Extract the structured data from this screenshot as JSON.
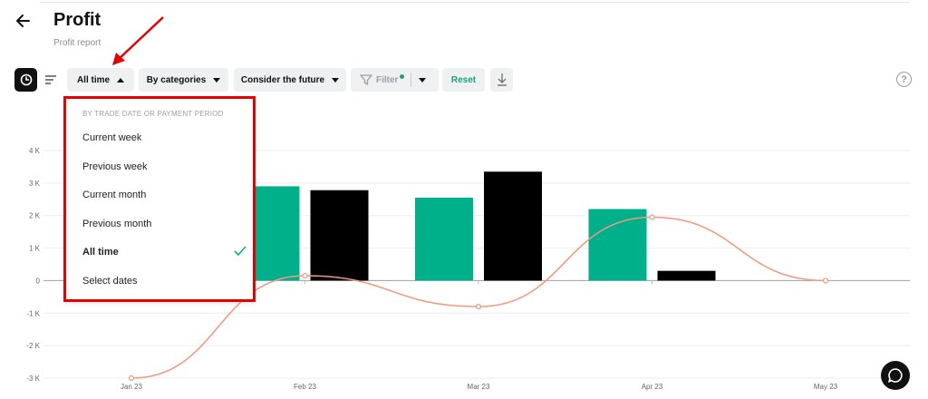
{
  "header": {
    "title": "Profit",
    "subtitle": "Profit report"
  },
  "toolbar": {
    "period_label": "All time",
    "categories_label": "By categories",
    "future_label": "Consider the future",
    "filter_label": "Filter",
    "reset_label": "Reset"
  },
  "dropdown": {
    "header": "BY TRADE DATE OR PAYMENT PERIOD",
    "items": [
      {
        "label": "Current week",
        "selected": false
      },
      {
        "label": "Previous week",
        "selected": false
      },
      {
        "label": "Current month",
        "selected": false
      },
      {
        "label": "Previous month",
        "selected": false
      },
      {
        "label": "All time",
        "selected": true
      },
      {
        "label": "Select dates",
        "selected": false
      }
    ]
  },
  "colors": {
    "income": "#00b08a",
    "expense": "#000000",
    "profit_line": "#f4977b",
    "accent": "#1aa37a",
    "annotation": "#e60000"
  },
  "icons": [
    "back-arrow-icon",
    "pie-chart-icon",
    "list-icon",
    "funnel-icon",
    "download-icon",
    "help-icon",
    "chat-icon",
    "check-icon"
  ],
  "chart_data": {
    "type": "bar",
    "categories": [
      "Jan 23",
      "Feb 23",
      "Mar 23",
      "Apr 23",
      "May 23"
    ],
    "series": [
      {
        "values": [
          null,
          2900,
          2550,
          2200,
          null
        ]
      },
      {
        "values": [
          null,
          2780,
          3350,
          300,
          null
        ]
      }
    ],
    "line": {
      "values": [
        -3000,
        150,
        -800,
        1950,
        0
      ]
    },
    "yticks": [
      "4 K",
      "3 K",
      "2 K",
      "1 K",
      "0",
      "-1 K",
      "-2 K",
      "-3 K"
    ],
    "ylim": [
      -3000,
      4000
    ],
    "grid": true
  }
}
